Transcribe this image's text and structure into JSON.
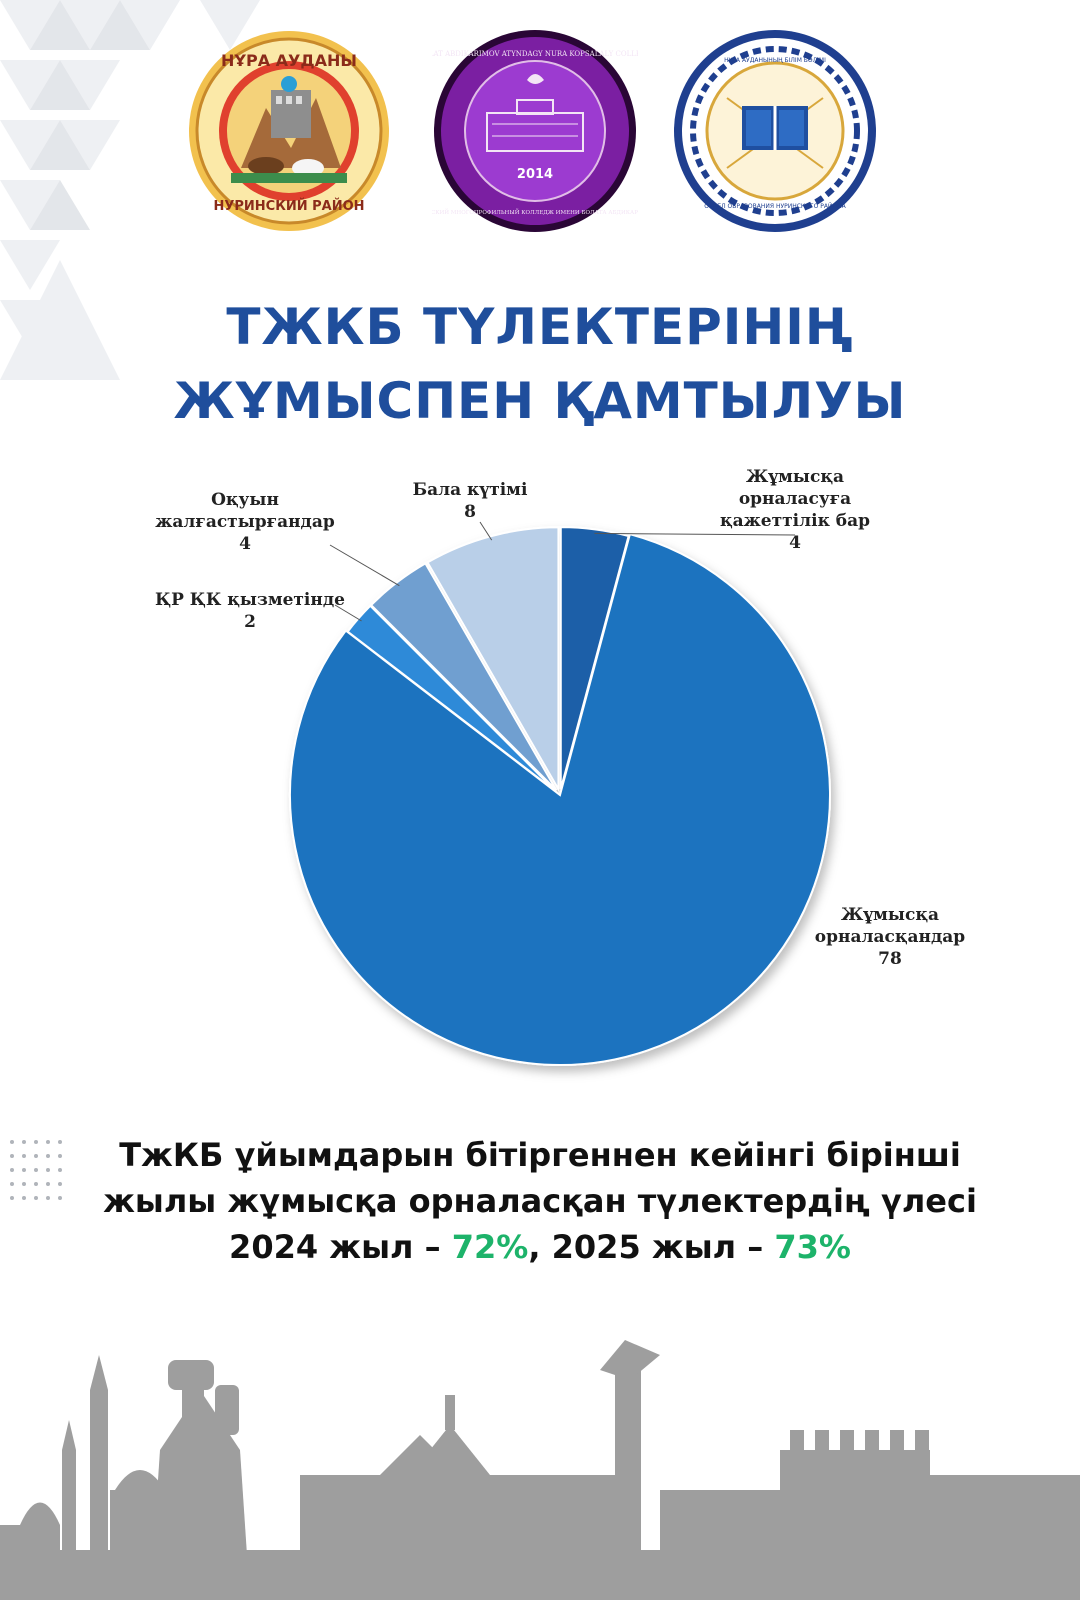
{
  "logos": [
    {
      "name": "nura-district-emblem",
      "top_text": "НҰРА АУДАНЫ",
      "bottom_text": "НУРИНСКИЙ РАЙОН",
      "accent": "#d4a017"
    },
    {
      "name": "college-emblem",
      "top_text": "BOLAT ABDIKARIMOV ATYNDAGY NURA KOPSALALY COLLEDJI",
      "year": "2014",
      "bottom_text": "НУРИНСКИЙ МНОГОПРОФИЛЬНЫЙ КОЛЛЕДЖ ИМЕНИ БОЛАТА АБДИКАРИМОВА",
      "accent": "#6a1b9a"
    },
    {
      "name": "education-department-emblem",
      "top_text": "НҰРА АУДАНЫНЫҢ БІЛІМ БӨЛІМІ",
      "bottom_text": "ОТДЕЛ ОБРАЗОВАНИЯ НУРИНСКОГО РАЙОНА",
      "accent": "#1f3f8f"
    }
  ],
  "title": {
    "line1": "ТЖКБ ТҮЛЕКТЕРІНІҢ",
    "line2": "ЖҰМЫСПЕН ҚАМТЫЛУЫ"
  },
  "chart_data": {
    "type": "pie",
    "slices": [
      {
        "label": "Жұмысқа орналасуға қажеттілік бар",
        "label_lines": [
          "Жұмысқа",
          "орналасуға",
          "қажеттілік бар"
        ],
        "value": 4,
        "color": "#1b5fa8"
      },
      {
        "label": "Жұмысқа орналасқандар",
        "label_lines": [
          "Жұмысқа",
          "орналасқандар"
        ],
        "value": 78,
        "color": "#1a73bf"
      },
      {
        "label": "ҚР ҚК қызметінде",
        "label_lines": [
          "ҚР ҚК қызметінде"
        ],
        "value": 2,
        "color": "#2e8ad8"
      },
      {
        "label": "Оқуын жалғастырғандар",
        "label_lines": [
          "Оқуын",
          "жалғастырғандар"
        ],
        "value": 4,
        "color": "#6f9fd0"
      },
      {
        "label": "Бала күтімі",
        "label_lines": [
          "Бала күтімі"
        ],
        "value": 8,
        "color": "#b9cfe8"
      }
    ]
  },
  "summary": {
    "line1": "ТжКБ ұйымдарын бітіргеннен кейінгі бірінші",
    "line2": "жылы жұмысқа орналасқан түлектердің үлесі",
    "year1": "2024 жыл – ",
    "pct1": "72%",
    "sep": ", ",
    "year2": "2025 жыл – ",
    "pct2": "73%",
    "accent": "#1db36a"
  }
}
